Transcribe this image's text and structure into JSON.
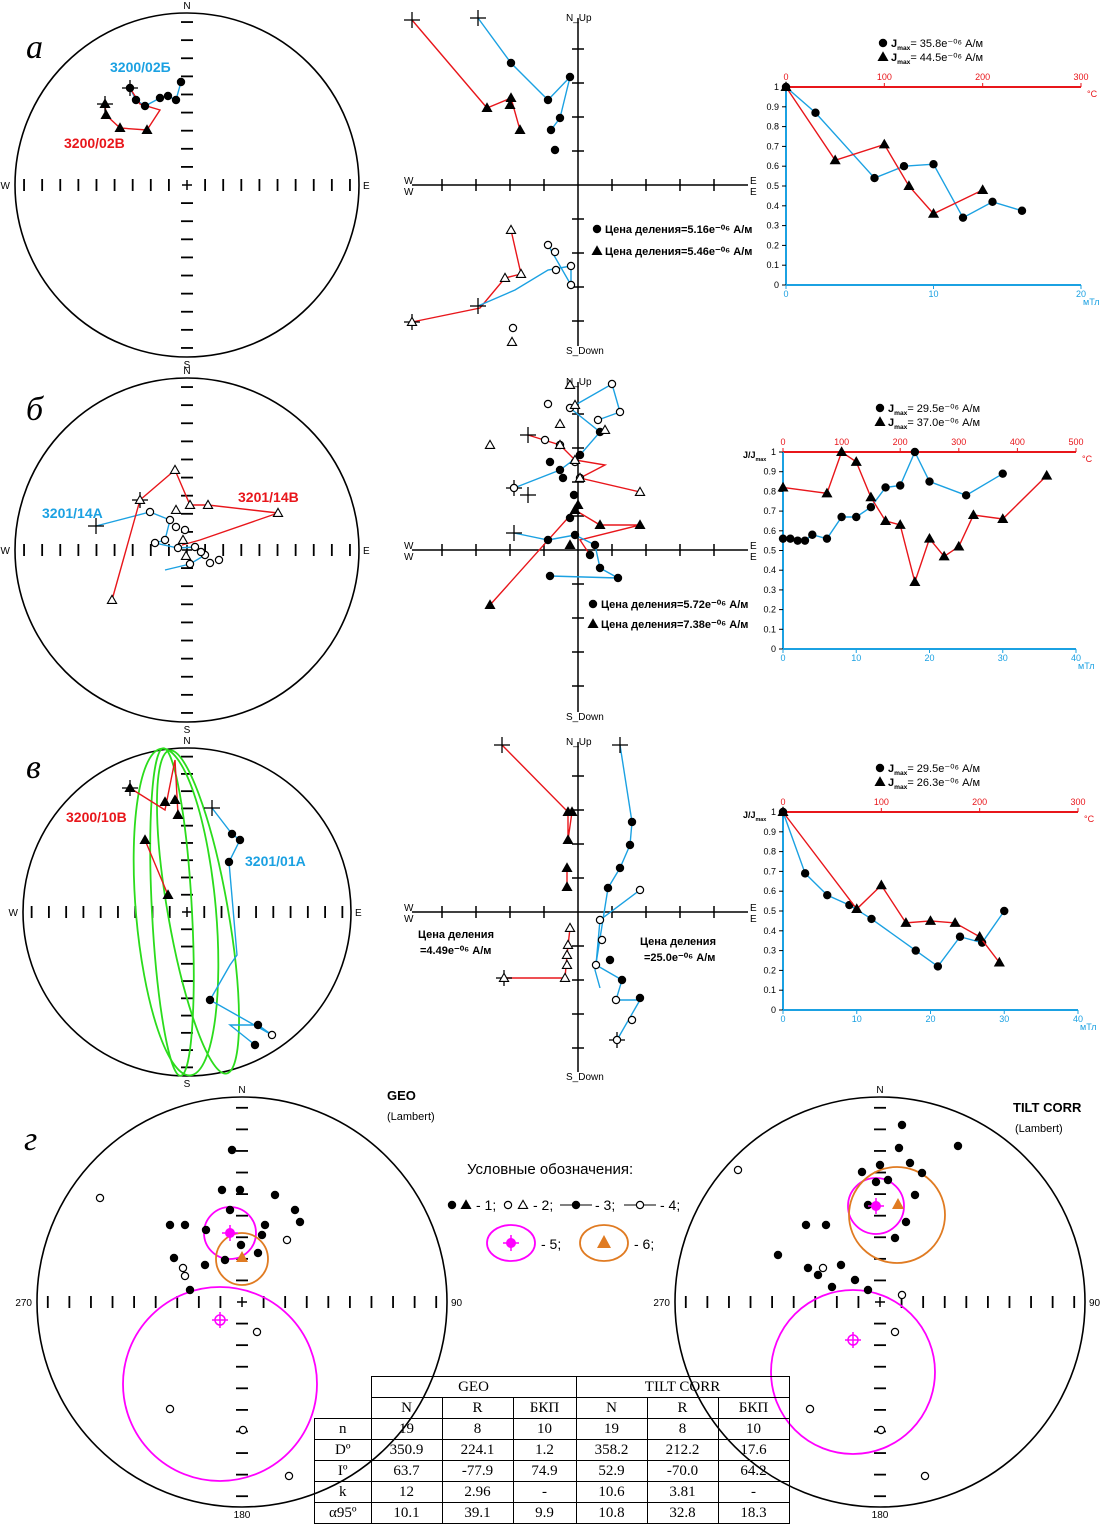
{
  "panels": [
    {
      "letter": "а",
      "stereo": {
        "N": "N",
        "S": "S",
        "E": "E",
        "W": "W",
        "samples": [
          {
            "label": "3200/02Б",
            "color": "#1ba1e2"
          },
          {
            "label": "3200/02В",
            "color": "#e8161b"
          }
        ]
      },
      "zijderveld": {
        "top": "N_Up",
        "bottom": "S_Down",
        "right_upper": "E",
        "right_lower": "E",
        "left_upper": "W",
        "left_lower": "W",
        "scale_circle": "Цена деления=5.16e⁻⁰⁶ А/м",
        "scale_triangle": "Цена деления=5.46e⁻⁰⁶ А/м"
      },
      "demag": {
        "legend_circle": "J",
        "legend_circle_sub": "max",
        "legend_circle_value": "= 35.8e⁻⁰⁶ А/м",
        "legend_triangle": "J",
        "legend_triangle_sub": "max",
        "legend_triangle_value": "= 44.5e⁻⁰⁶ А/м",
        "ylabel": "",
        "top_unit": "°C",
        "bottom_unit": "мТл",
        "top_ticks": [
          "0",
          "100",
          "200",
          "300"
        ],
        "bottom_ticks": [
          "0",
          "10",
          "20"
        ],
        "y_ticks": [
          "0",
          "0.1",
          "0.2",
          "0.3",
          "0.4",
          "0.5",
          "0.6",
          "0.7",
          "0.8",
          "0.9",
          "1"
        ]
      }
    },
    {
      "letter": "б",
      "stereo": {
        "N": "N",
        "S": "S",
        "E": "E",
        "W": "W",
        "samples": [
          {
            "label": "3201/14А",
            "color": "#1ba1e2"
          },
          {
            "label": "3201/14В",
            "color": "#e8161b"
          }
        ]
      },
      "zijderveld": {
        "top": "N_Up",
        "bottom": "S_Down",
        "right_upper": "E",
        "right_lower": "E",
        "left_upper": "W",
        "left_lower": "W",
        "scale_circle": "Цена деления=5.72e⁻⁰⁶ А/м",
        "scale_triangle": "Цена деления=7.38e⁻⁰⁶ А/м"
      },
      "demag": {
        "legend_circle": "J",
        "legend_circle_sub": "max",
        "legend_circle_value": "= 29.5e⁻⁰⁶ А/м",
        "legend_triangle": "J",
        "legend_triangle_sub": "max",
        "legend_triangle_value": "= 37.0e⁻⁰⁶ А/м",
        "ylabel": "J/J",
        "ylabel_sub": "max",
        "top_unit": "°C",
        "bottom_unit": "мТл",
        "top_ticks": [
          "0",
          "100",
          "200",
          "300",
          "400",
          "500"
        ],
        "bottom_ticks": [
          "0",
          "10",
          "20",
          "30",
          "40"
        ],
        "y_ticks": [
          "0",
          "0.1",
          "0.2",
          "0.3",
          "0.4",
          "0.5",
          "0.6",
          "0.7",
          "0.8",
          "0.9",
          "1"
        ]
      }
    },
    {
      "letter": "в",
      "stereo": {
        "N": "N",
        "S": "S",
        "E": "E",
        "W": "W",
        "samples": [
          {
            "label": "3200/10В",
            "color": "#e8161b"
          },
          {
            "label": "3201/01А",
            "color": "#1ba1e2"
          }
        ]
      },
      "zijderveld": {
        "top": "N_Up",
        "bottom": "S_Down",
        "right_upper": "E",
        "right_lower": "E",
        "left_upper": "W",
        "left_lower": "W",
        "scale_left_1": "Цена деления",
        "scale_left_2": "=4.49e⁻⁰⁶ А/м",
        "scale_right_1": "Цена деления",
        "scale_right_2": "=25.0e⁻⁰⁶ А/м"
      },
      "demag": {
        "legend_circle": "J",
        "legend_circle_sub": "max",
        "legend_circle_value": "= 29.5e⁻⁰⁶ А/м",
        "legend_triangle": "J",
        "legend_triangle_sub": "max",
        "legend_triangle_value": "= 26.3e⁻⁰⁶ А/м",
        "ylabel": "J/J",
        "ylabel_sub": "max",
        "top_unit": "°C",
        "bottom_unit": "мТл",
        "top_ticks": [
          "0",
          "100",
          "200",
          "300"
        ],
        "bottom_ticks": [
          "0",
          "10",
          "20",
          "30",
          "40"
        ],
        "y_ticks": [
          "0",
          "0.1",
          "0.2",
          "0.3",
          "0.4",
          "0.5",
          "0.6",
          "0.7",
          "0.8",
          "0.9",
          "1"
        ]
      }
    },
    {
      "letter": "г",
      "left_stereo": {
        "title": "GEO",
        "subtitle": "(Lambert)",
        "N": "N",
        "S": "180",
        "E": "90",
        "W": "270"
      },
      "right_stereo": {
        "title": "TILT CORR",
        "subtitle": "(Lambert)",
        "N": "N",
        "S": "180",
        "E": "90",
        "W": "270"
      },
      "legend": {
        "title": "Условные обозначения:",
        "item1": "- 1;",
        "item2": "- 2;",
        "item3": "- 3;",
        "item4": "- 4;",
        "item5": "- 5;",
        "item6": "- 6;"
      }
    }
  ],
  "colors": {
    "blue": "#1ba1e2",
    "red": "#e8161b",
    "green": "#2bdc1c",
    "magenta": "#ff00ff",
    "orange": "#e07b22"
  },
  "table": {
    "groups": [
      "GEO",
      "TILT CORR"
    ],
    "columns": [
      "N",
      "R",
      "БКП",
      "N",
      "R",
      "БКП"
    ],
    "rows": [
      {
        "label": "n",
        "values": [
          "19",
          "8",
          "10",
          "19",
          "8",
          "10"
        ]
      },
      {
        "label": "Dº",
        "values": [
          "350.9",
          "224.1",
          "1.2",
          "358.2",
          "212.2",
          "17.6"
        ]
      },
      {
        "label": "Iº",
        "values": [
          "63.7",
          "-77.9",
          "74.9",
          "52.9",
          "-70.0",
          "64.2"
        ]
      },
      {
        "label": "k",
        "values": [
          "12",
          "2.96",
          "-",
          "10.6",
          "3.81",
          "-"
        ]
      },
      {
        "label": "α95º",
        "values": [
          "10.1",
          "39.1",
          "9.9",
          "10.8",
          "32.8",
          "18.3"
        ]
      }
    ]
  },
  "chart_data": [
    {
      "type": "line",
      "panel": "а",
      "title": "",
      "xlabel": "мТл",
      "x_top_label": "°C",
      "ylabel": "",
      "xlim": [
        0,
        20
      ],
      "x_top_lim": [
        0,
        300
      ],
      "ylim": [
        0,
        1
      ],
      "series": [
        {
          "name": "J max = 35.8e-06 А/м",
          "marker": "circle",
          "color": "#1ba1e2",
          "axis": "bottom",
          "x": [
            0,
            2,
            6,
            8,
            10,
            12,
            14,
            16
          ],
          "y": [
            1,
            0.87,
            0.54,
            0.6,
            0.61,
            0.34,
            0.42,
            0.375
          ]
        },
        {
          "name": "J max = 44.5e-06 А/м",
          "marker": "triangle",
          "color": "#e8161b",
          "axis": "top",
          "x": [
            0,
            50,
            100,
            125,
            150,
            200
          ],
          "y": [
            1,
            0.63,
            0.71,
            0.5,
            0.36,
            0.48
          ]
        }
      ]
    },
    {
      "type": "line",
      "panel": "б",
      "title": "",
      "xlabel": "мТл",
      "x_top_label": "°C",
      "ylabel": "J/J max",
      "xlim": [
        0,
        40
      ],
      "x_top_lim": [
        0,
        500
      ],
      "ylim": [
        0,
        1
      ],
      "series": [
        {
          "name": "J max = 29.5e-06 А/м",
          "marker": "circle",
          "color": "#1ba1e2",
          "axis": "bottom",
          "x": [
            0,
            1,
            2,
            3,
            4,
            6,
            8,
            10,
            12,
            14,
            16,
            18,
            20,
            25,
            30
          ],
          "y": [
            0.56,
            0.56,
            0.55,
            0.55,
            0.58,
            0.56,
            0.67,
            0.67,
            0.72,
            0.82,
            0.83,
            1.0,
            0.85,
            0.78,
            0.89
          ]
        },
        {
          "name": "J max = 37.0e-06 А/м",
          "marker": "triangle",
          "color": "#e8161b",
          "axis": "top",
          "x": [
            0,
            75,
            100,
            125,
            150,
            175,
            200,
            225,
            250,
            275,
            300,
            325,
            375,
            450
          ],
          "y": [
            0.82,
            0.79,
            1.0,
            0.95,
            0.77,
            0.65,
            0.63,
            0.34,
            0.56,
            0.47,
            0.52,
            0.68,
            0.66,
            0.88
          ]
        }
      ]
    },
    {
      "type": "line",
      "panel": "в",
      "title": "",
      "xlabel": "мТл",
      "x_top_label": "°C",
      "ylabel": "J/J max",
      "xlim": [
        0,
        40
      ],
      "x_top_lim": [
        0,
        300
      ],
      "ylim": [
        0,
        1
      ],
      "series": [
        {
          "name": "J max = 29.5e-06 А/м",
          "marker": "circle",
          "color": "#1ba1e2",
          "axis": "bottom",
          "x": [
            0,
            3,
            6,
            9,
            12,
            18,
            21,
            24,
            27,
            30
          ],
          "y": [
            1,
            0.69,
            0.58,
            0.53,
            0.46,
            0.3,
            0.22,
            0.37,
            0.34,
            0.5
          ]
        },
        {
          "name": "J max = 26.3e-06 А/м",
          "marker": "triangle",
          "color": "#e8161b",
          "axis": "top",
          "x": [
            0,
            75,
            100,
            125,
            150,
            175,
            200,
            220
          ],
          "y": [
            1,
            0.51,
            0.63,
            0.44,
            0.45,
            0.44,
            0.37,
            0.24
          ]
        }
      ]
    }
  ]
}
